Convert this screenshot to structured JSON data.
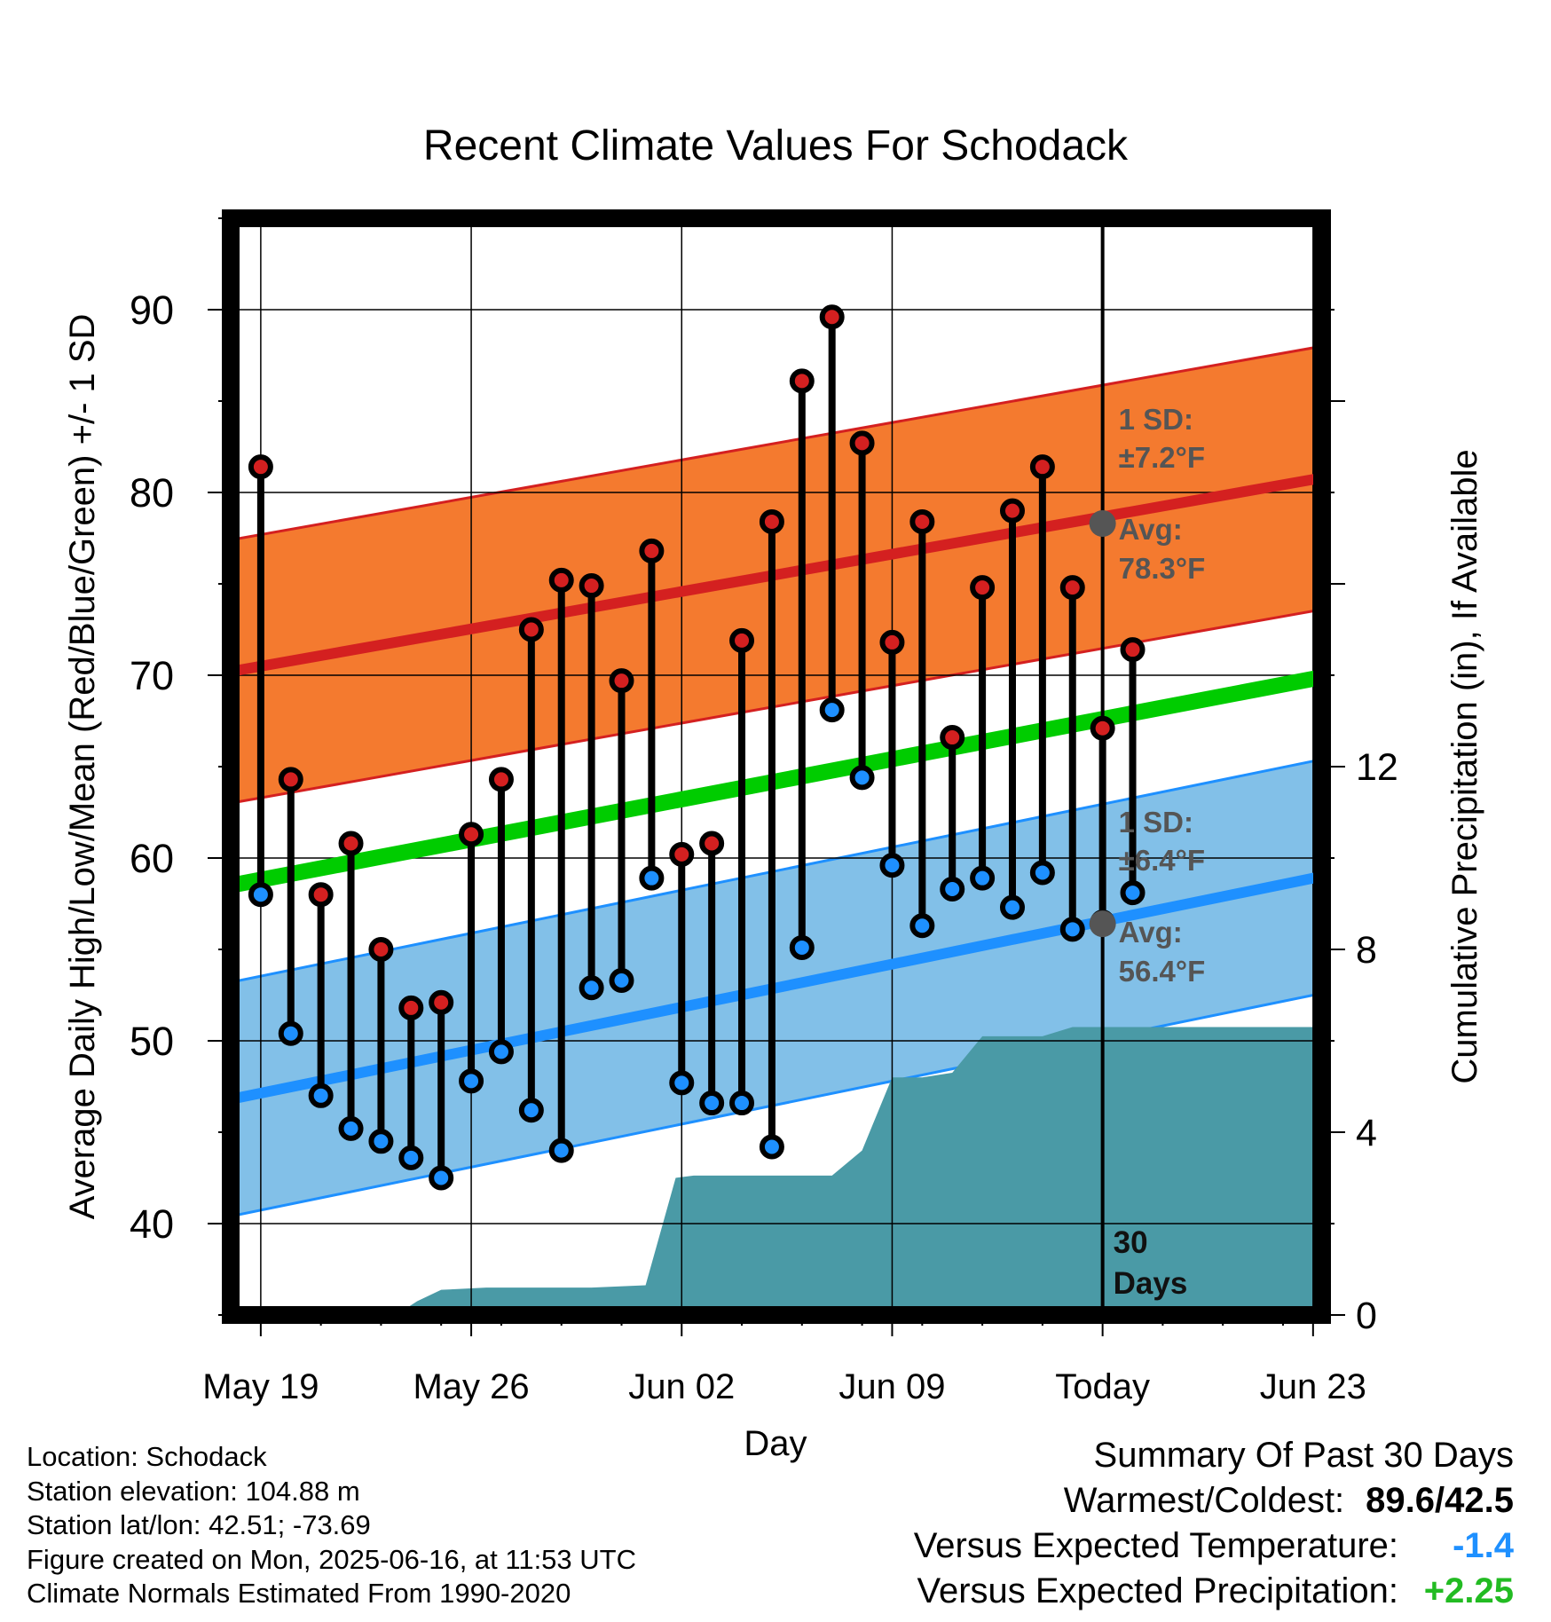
{
  "chart_data": {
    "type": "line",
    "title": "Recent Climate Values For Schodack",
    "xlabel": "Day",
    "ylabel": "Average Daily High/Low/Mean (Red/Blue/Green) +/- 1 SD",
    "y2label": "Cumulative Precipitation (in), If Available",
    "ylim": [
      35,
      95
    ],
    "y2lim": [
      0,
      24
    ],
    "yticks": [
      40,
      50,
      60,
      70,
      80,
      90
    ],
    "y2ticks": [
      0,
      4,
      8,
      12
    ],
    "x_tick_labels": [
      "May 19",
      "May 26",
      "Jun 02",
      "Jun 09",
      "Today",
      "Jun 23"
    ],
    "x_days": [
      1,
      2,
      3,
      4,
      5,
      6,
      7,
      8,
      9,
      10,
      11,
      12,
      13,
      14,
      15,
      16,
      17,
      18,
      19,
      20,
      21,
      22,
      23,
      24,
      25,
      26,
      27,
      28,
      29,
      30
    ],
    "daily_high": [
      81.4,
      64.3,
      58.0,
      60.8,
      55.0,
      51.8,
      52.1,
      61.3,
      64.3,
      72.5,
      75.2,
      74.9,
      69.7,
      76.8,
      60.2,
      60.8,
      71.9,
      78.4,
      86.1,
      89.6,
      82.7,
      71.8,
      78.4,
      66.6,
      74.8,
      79.0,
      81.4,
      74.8,
      67.1,
      71.4
    ],
    "daily_low": [
      58.0,
      50.4,
      47.0,
      45.2,
      44.5,
      43.6,
      42.5,
      47.8,
      49.4,
      46.2,
      44.0,
      52.9,
      53.3,
      58.9,
      47.7,
      46.6,
      46.6,
      44.2,
      55.1,
      68.1,
      64.4,
      59.6,
      56.3,
      58.3,
      58.9,
      57.3,
      59.2,
      56.1,
      56.5,
      58.1
    ],
    "normal_high": {
      "start": 70.2,
      "end": 80.8
    },
    "normal_low": {
      "start": 46.8,
      "end": 59.0
    },
    "normal_mean": {
      "start": 58.5,
      "end": 69.9
    },
    "sd_high": 7.2,
    "sd_low": 6.4,
    "cumulative_precip": [
      [
        5.5,
        0
      ],
      [
        6.2,
        0.3
      ],
      [
        7.0,
        0.55
      ],
      [
        8.5,
        0.6
      ],
      [
        12,
        0.6
      ],
      [
        13.8,
        0.65
      ],
      [
        14.8,
        3.0
      ],
      [
        15.4,
        3.05
      ],
      [
        20,
        3.05
      ],
      [
        21,
        3.6
      ],
      [
        22,
        5.2
      ],
      [
        23,
        5.2
      ],
      [
        24,
        5.3
      ],
      [
        25,
        6.1
      ],
      [
        27,
        6.1
      ],
      [
        28,
        6.3
      ],
      [
        36,
        6.3
      ]
    ],
    "today_label": "Today",
    "days_label": "30 Days",
    "annotations": {
      "high_sd_line1": "1 SD:",
      "high_sd_line2": "±7.2°F",
      "high_avg_line1": "Avg:",
      "high_avg_line2": "78.3°F",
      "low_sd_line1": "1 SD:",
      "low_sd_line2": "±6.4°F",
      "low_avg_line1": "Avg:",
      "low_avg_line2": "56.4°F"
    },
    "today_high_avg": 78.3,
    "today_low_avg": 56.4,
    "colors": {
      "high_band": "#f47a2f",
      "high_line": "#d42020",
      "low_band": "#82c0e8",
      "low_line": "#1e90ff",
      "mean_line": "#00cc00",
      "precip": "#4a9aa6",
      "high_dot": "#d42020",
      "low_dot": "#1e90ff"
    }
  },
  "info": {
    "location": "Location: Schodack",
    "elevation": "Station elevation: 104.88 m",
    "latlon": "Station lat/lon: 42.51; -73.69",
    "created": "Figure created on Mon, 2025-06-16, at 11:53 UTC",
    "normals": "Climate Normals Estimated From 1990-2020"
  },
  "summary": {
    "heading": "Summary Of Past 30 Days",
    "warm_cold_label": "Warmest/Coldest:",
    "warm_cold_value": "89.6/42.5",
    "temp_label": "Versus Expected Temperature:",
    "temp_value": "-1.4",
    "precip_label": "Versus Expected Precipitation:",
    "precip_value": "+2.25"
  }
}
